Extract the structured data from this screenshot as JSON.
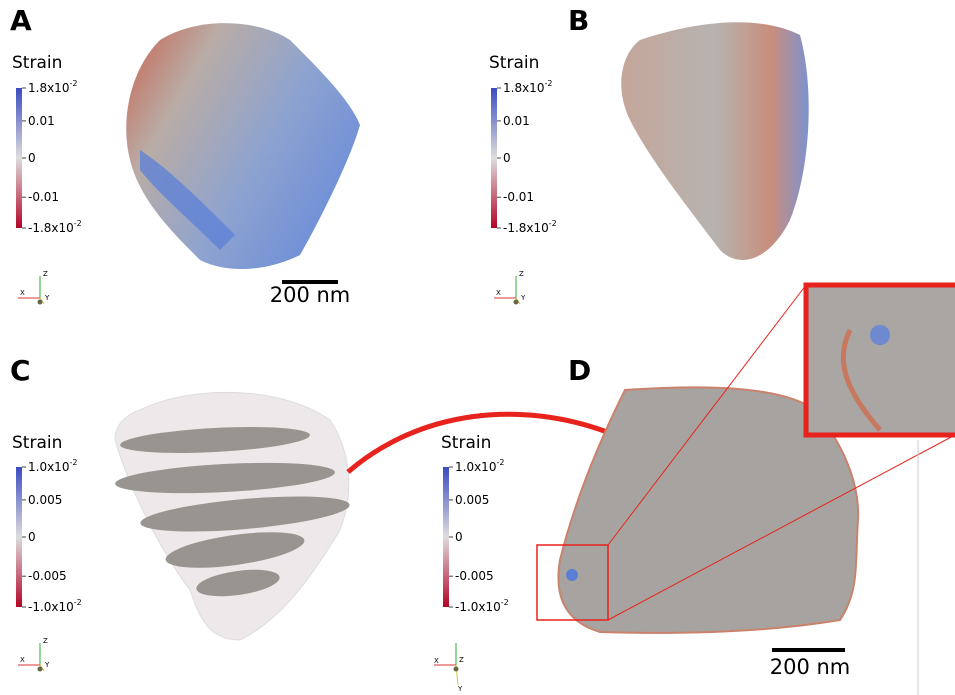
{
  "panels": [
    {
      "label": "A",
      "colorbar_title": "Strain",
      "ticks": [
        {
          "text": "1.8x10",
          "sup": "-2"
        },
        {
          "text": "0.01"
        },
        {
          "text": "0"
        },
        {
          "text": "-0.01"
        },
        {
          "text": "-1.8x10",
          "sup": "-2"
        }
      ],
      "scale_bar": "200 nm",
      "axes": [
        "Z",
        "X",
        "Y"
      ]
    },
    {
      "label": "B",
      "colorbar_title": "Strain",
      "ticks": [
        {
          "text": "1.8x10",
          "sup": "-2"
        },
        {
          "text": "0.01"
        },
        {
          "text": "0"
        },
        {
          "text": "-0.01"
        },
        {
          "text": "-1.8x10",
          "sup": "-2"
        }
      ],
      "axes": [
        "Z",
        "X",
        "Y"
      ]
    },
    {
      "label": "C",
      "colorbar_title": "Strain",
      "ticks": [
        {
          "text": "1.0x10",
          "sup": "-2"
        },
        {
          "text": "0.005"
        },
        {
          "text": "0"
        },
        {
          "text": "-0.005"
        },
        {
          "text": "-1.0x10",
          "sup": "-2"
        }
      ],
      "axes": [
        "Z",
        "X",
        "Y"
      ]
    },
    {
      "label": "D",
      "colorbar_title": "Strain",
      "ticks": [
        {
          "text": "1.0x10",
          "sup": "-2"
        },
        {
          "text": "0.005"
        },
        {
          "text": "0"
        },
        {
          "text": "-0.005"
        },
        {
          "text": "-1.0x10",
          "sup": "-2"
        }
      ],
      "scale_bar": "200 nm",
      "axes": [
        "X",
        "Z",
        "Y"
      ]
    }
  ]
}
